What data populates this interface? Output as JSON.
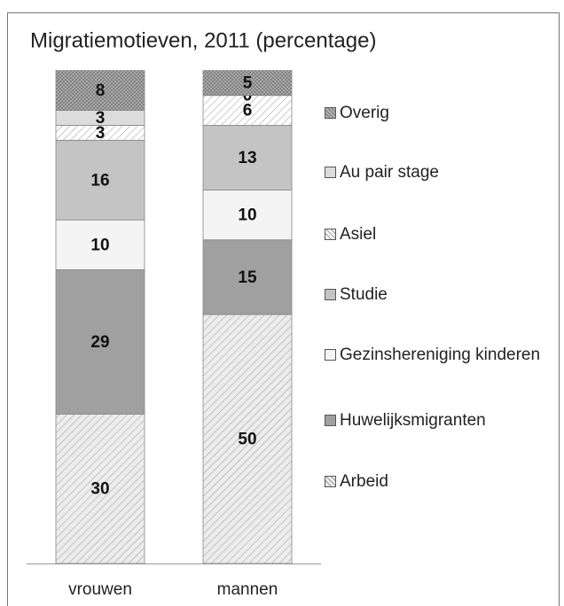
{
  "chart_data": {
    "type": "stacked_bar",
    "title": "Migratiemotieven, 2011 (percentage)",
    "categories": [
      "vrouwen",
      "mannen"
    ],
    "ylim": [
      0,
      100
    ],
    "series": [
      {
        "name": "Arbeid",
        "color": "#ececec",
        "hatch": "diagonal",
        "values": [
          30,
          50
        ]
      },
      {
        "name": "Huwelijksmigranten",
        "color": "#a0a0a0",
        "values": [
          29,
          15
        ]
      },
      {
        "name": "Gezinshereniging kinderen",
        "color": "#f4f4f4",
        "values": [
          10,
          10
        ]
      },
      {
        "name": "Studie",
        "color": "#c4c4c4",
        "values": [
          16,
          13
        ]
      },
      {
        "name": "Asiel",
        "color": "#ffffff",
        "hatch": "diagonal",
        "values": [
          3,
          6
        ]
      },
      {
        "name": "Au pair stage",
        "color": "#dcdcdc",
        "values": [
          3,
          0
        ]
      },
      {
        "name": "Overig",
        "color": "#b4b4b4",
        "hatch": "cross",
        "values": [
          8,
          5
        ]
      }
    ]
  }
}
